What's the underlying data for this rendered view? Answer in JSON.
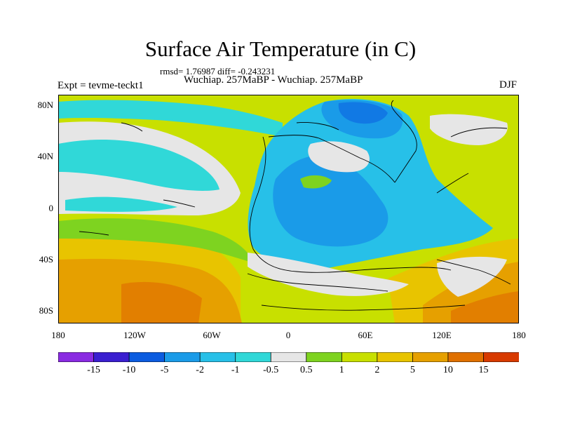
{
  "header": {
    "title": "Surface Air Temperature (in C)",
    "stats": "rmsd= 1.76987 diff= -0.243231",
    "subtitle": "Wuchiap. 257MaBP - Wuchiap. 257MaBP",
    "left_label": "Expt = tevme-teckt1",
    "right_label": "DJF"
  },
  "map": {
    "lat_ticks": [
      "80N",
      "40N",
      "0",
      "40S",
      "80S"
    ],
    "lon_ticks": [
      "180",
      "120W",
      "60W",
      "0",
      "60E",
      "120E",
      "180"
    ]
  },
  "colorbar": {
    "labels": [
      "-15",
      "-10",
      "-5",
      "-2",
      "-1",
      "-0.5",
      "0.5",
      "1",
      "2",
      "5",
      "10",
      "15"
    ],
    "colors": [
      "#8a2be2",
      "#3a1fd0",
      "#0b5ce0",
      "#1a9be8",
      "#27c0e8",
      "#30d8d8",
      "#e6e6e6",
      "#7ed320",
      "#c8e000",
      "#e8c400",
      "#e6a000",
      "#e07000",
      "#d83a00"
    ]
  }
}
